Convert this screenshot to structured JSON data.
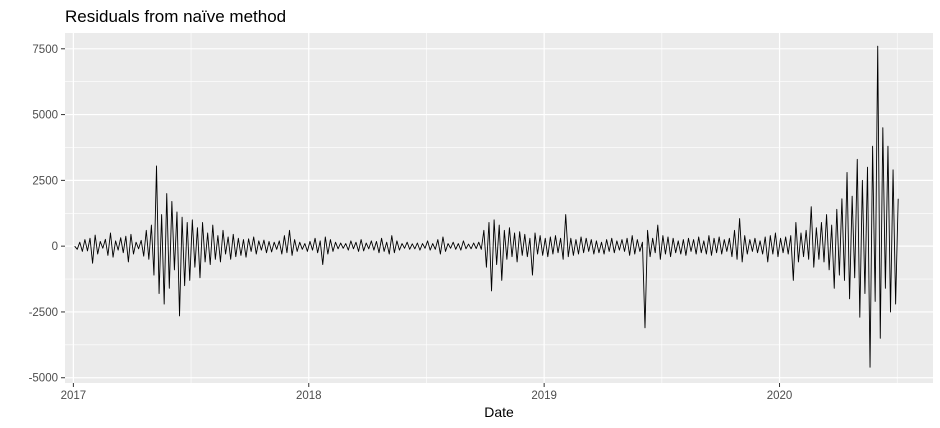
{
  "chart_data": {
    "type": "line",
    "title": "Residuals from naïve method",
    "xlabel": "Date",
    "ylabel": "",
    "x_range": [
      "2016-12-19",
      "2020-08-26"
    ],
    "ylim": [
      -5200,
      8100
    ],
    "x_ticks": [
      "2017",
      "2018",
      "2019",
      "2020"
    ],
    "y_ticks": [
      "-5000",
      "-2500",
      "0",
      "2500",
      "5000",
      "7500"
    ],
    "grid": true,
    "legend": "none",
    "colors": {
      "panel": "#ebebeb",
      "grid": "#ffffff",
      "line": "#000000"
    },
    "series": [
      {
        "frequency": "daily",
        "start_date": "2017-01-03",
        "end_date": "2020-07-03",
        "values": [
          0,
          -120,
          150,
          -200,
          250,
          -180,
          300,
          -650,
          420,
          -300,
          180,
          -80,
          260,
          -350,
          500,
          -420,
          200,
          -150,
          320,
          -250,
          380,
          -600,
          450,
          -300,
          150,
          -100,
          220,
          -380,
          600,
          -500,
          800,
          -1100,
          3050,
          -1800,
          1200,
          -2200,
          2000,
          -1600,
          1700,
          -900,
          1300,
          -2650,
          1100,
          -1500,
          900,
          -1300,
          1000,
          -800,
          700,
          -1200,
          900,
          -600,
          500,
          -700,
          800,
          -500,
          400,
          -600,
          600,
          -300,
          350,
          -500,
          450,
          -400,
          300,
          -350,
          250,
          -420,
          280,
          -200,
          350,
          -300,
          200,
          -150,
          230,
          -250,
          180,
          -220,
          150,
          -120,
          200,
          -300,
          400,
          -250,
          600,
          -350,
          250,
          -200,
          150,
          -120,
          100,
          -200,
          180,
          -150,
          300,
          -250,
          200,
          -700,
          350,
          -300,
          250,
          -200,
          150,
          -100,
          120,
          -80,
          100,
          -150,
          200,
          -100,
          150,
          -200,
          250,
          -180,
          120,
          -100,
          200,
          -150,
          180,
          -250,
          300,
          -200,
          150,
          -300,
          400,
          -250,
          200,
          -150,
          100,
          -80,
          150,
          -120,
          90,
          -100,
          120,
          -150,
          100,
          -80,
          200,
          -150,
          100,
          -120,
          250,
          -300,
          350,
          -200,
          100,
          -80,
          150,
          -120,
          100,
          -150,
          200,
          -100,
          80,
          -100,
          120,
          -90,
          150,
          -120,
          600,
          -800,
          900,
          -1700,
          1000,
          -700,
          800,
          -1300,
          600,
          -500,
          700,
          -400,
          500,
          -600,
          550,
          -350,
          450,
          -400,
          300,
          -1100,
          500,
          -300,
          400,
          -350,
          300,
          -400,
          350,
          -300,
          400,
          -250,
          300,
          -500,
          1200,
          -400,
          300,
          -350,
          250,
          -300,
          350,
          -250,
          300,
          -200,
          250,
          -300,
          200,
          -250,
          150,
          -300,
          250,
          -200,
          300,
          -250,
          200,
          -150,
          250,
          -200,
          300,
          -350,
          400,
          -300,
          250,
          -200,
          150,
          -3100,
          600,
          -400,
          300,
          -250,
          800,
          -500,
          400,
          -300,
          350,
          -400,
          300,
          -250,
          200,
          -300,
          250,
          -350,
          300,
          -200,
          250,
          -300,
          350,
          -250,
          200,
          -300,
          400,
          -350,
          300,
          -250,
          350,
          -300,
          250,
          -200,
          300,
          -400,
          600,
          -500,
          1050,
          -600,
          400,
          -300,
          250,
          -200,
          300,
          -250,
          200,
          -300,
          350,
          -600,
          400,
          -300,
          500,
          -400,
          300,
          -250,
          350,
          -300,
          400,
          -1300,
          900,
          -600,
          500,
          -400,
          600,
          -500,
          1500,
          -800,
          700,
          -500,
          900,
          -600,
          1200,
          -900,
          800,
          -1600,
          1400,
          -1100,
          1800,
          -1300,
          2800,
          -2000,
          1900,
          -1200,
          3300,
          -2700,
          2500,
          -1800,
          3000,
          -4600,
          3800,
          -2100,
          7600,
          -3500,
          4500,
          -1600,
          3800,
          -2500,
          2900,
          -2200,
          1800
        ]
      }
    ]
  }
}
